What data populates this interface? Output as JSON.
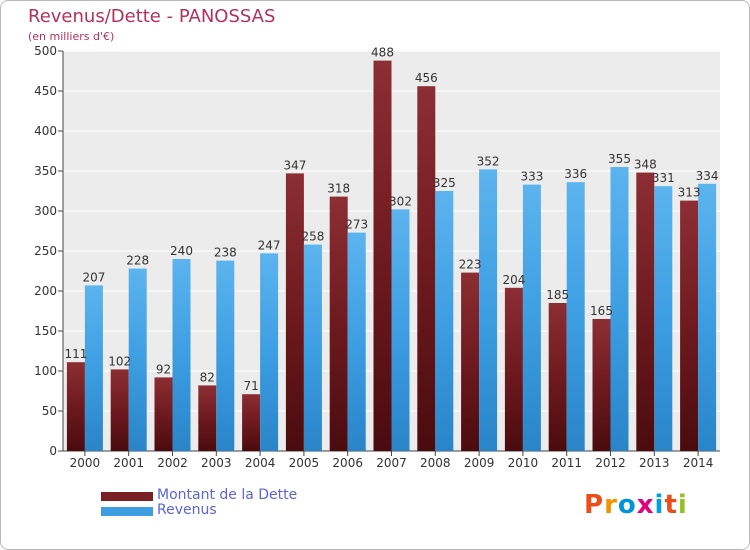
{
  "title": "Revenus/Dette - PANOSSAS",
  "subtitle": "(en milliers d'€)",
  "legend": {
    "debt_label": "Montant de la Dette",
    "revenue_label": "Revenus"
  },
  "logo": {
    "text": "Proxiti",
    "colors": [
      "#e94e1b",
      "#f39200",
      "#0095d9",
      "#e5007e",
      "#009fe3",
      "#e94e1b",
      "#95c11f"
    ]
  },
  "colors": {
    "debt": "#7a1f24",
    "revenue": "#3d9ee2",
    "title": "#b5305a",
    "legend_text": "#5a64d8"
  },
  "chart_data": {
    "type": "bar",
    "categories": [
      "2000",
      "2001",
      "2002",
      "2003",
      "2004",
      "2005",
      "2006",
      "2007",
      "2008",
      "2009",
      "2010",
      "2011",
      "2012",
      "2013",
      "2014"
    ],
    "series": [
      {
        "name": "Montant de la Dette",
        "values": [
          111,
          102,
          92,
          82,
          71,
          347,
          318,
          488,
          456,
          223,
          204,
          185,
          165,
          348,
          313
        ]
      },
      {
        "name": "Revenus",
        "values": [
          207,
          228,
          240,
          238,
          247,
          258,
          273,
          302,
          325,
          352,
          333,
          336,
          355,
          331,
          334
        ]
      }
    ],
    "yticks": [
      0,
      50,
      100,
      150,
      200,
      250,
      300,
      350,
      400,
      450,
      500
    ],
    "ylim": [
      0,
      500
    ],
    "grid": true,
    "legend_position": "bottom-left"
  }
}
